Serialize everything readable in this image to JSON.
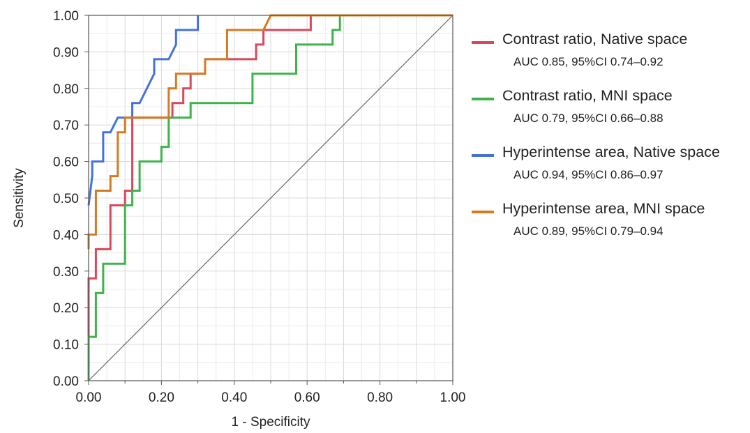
{
  "chart_data": {
    "type": "line",
    "xlabel": "1 - Specificity",
    "ylabel": "Sensitivity",
    "xlim": [
      0,
      1
    ],
    "ylim": [
      0,
      1
    ],
    "grid": true,
    "legend_position": "right",
    "x_ticks": [
      "0.00",
      "0.20",
      "0.40",
      "0.60",
      "0.80",
      "1.00"
    ],
    "y_ticks": [
      "0.00",
      "0.10",
      "0.20",
      "0.30",
      "0.40",
      "0.50",
      "0.60",
      "0.70",
      "0.80",
      "0.90",
      "1.00"
    ],
    "reference_line": {
      "x": [
        0,
        1
      ],
      "y": [
        0,
        1
      ],
      "color": "#666666"
    },
    "series": [
      {
        "name": "Contrast ratio, Native space",
        "auc_label": "AUC 0.85, 95%CI 0.74–0.92",
        "color": "#d9475a",
        "x": [
          0,
          0,
          0.02,
          0.02,
          0.06,
          0.06,
          0.1,
          0.1,
          0.12,
          0.12,
          0.23,
          0.23,
          0.26,
          0.26,
          0.28,
          0.28,
          0.32,
          0.32,
          0.46,
          0.46,
          0.48,
          0.48,
          0.61,
          0.61,
          1.0
        ],
        "y": [
          0,
          0.28,
          0.28,
          0.36,
          0.36,
          0.48,
          0.48,
          0.52,
          0.52,
          0.72,
          0.72,
          0.76,
          0.76,
          0.8,
          0.8,
          0.84,
          0.84,
          0.88,
          0.88,
          0.92,
          0.92,
          0.96,
          0.96,
          1.0,
          1.0
        ]
      },
      {
        "name": "Contrast ratio, MNI space",
        "auc_label": "AUC 0.79, 95%CI 0.66–0.88",
        "color": "#3cb44b",
        "x": [
          0,
          0,
          0.02,
          0.02,
          0.04,
          0.04,
          0.1,
          0.1,
          0.12,
          0.12,
          0.14,
          0.14,
          0.2,
          0.2,
          0.22,
          0.22,
          0.28,
          0.28,
          0.45,
          0.45,
          0.57,
          0.57,
          0.67,
          0.67,
          0.69,
          0.69,
          1.0
        ],
        "y": [
          0,
          0.12,
          0.12,
          0.24,
          0.24,
          0.32,
          0.32,
          0.48,
          0.48,
          0.52,
          0.52,
          0.6,
          0.6,
          0.64,
          0.64,
          0.72,
          0.72,
          0.76,
          0.76,
          0.84,
          0.84,
          0.92,
          0.92,
          0.96,
          0.96,
          1.0,
          1.0
        ]
      },
      {
        "name": "Hyperintense area, Native space",
        "auc_label": "AUC 0.94, 95%CI 0.86–0.97",
        "color": "#4472db",
        "x": [
          0,
          0.01,
          0.01,
          0.04,
          0.04,
          0.06,
          0.08,
          0.12,
          0.12,
          0.14,
          0.18,
          0.18,
          0.22,
          0.24,
          0.24,
          0.3,
          0.3
        ],
        "y": [
          0.48,
          0.56,
          0.6,
          0.6,
          0.68,
          0.68,
          0.72,
          0.72,
          0.76,
          0.76,
          0.84,
          0.88,
          0.88,
          0.92,
          0.96,
          0.96,
          1.0
        ]
      },
      {
        "name": "Hyperintense area, MNI space",
        "auc_label": "AUC 0.89, 95%CI 0.79–0.94",
        "color": "#d47a22",
        "x": [
          0,
          0,
          0.02,
          0.02,
          0.06,
          0.06,
          0.08,
          0.08,
          0.1,
          0.1,
          0.22,
          0.22,
          0.24,
          0.24,
          0.32,
          0.32,
          0.38,
          0.38,
          0.48,
          0.5,
          1.0
        ],
        "y": [
          0.36,
          0.4,
          0.4,
          0.52,
          0.52,
          0.56,
          0.56,
          0.68,
          0.68,
          0.72,
          0.72,
          0.8,
          0.8,
          0.84,
          0.84,
          0.88,
          0.88,
          0.96,
          0.96,
          1.0,
          1.0
        ]
      }
    ]
  }
}
